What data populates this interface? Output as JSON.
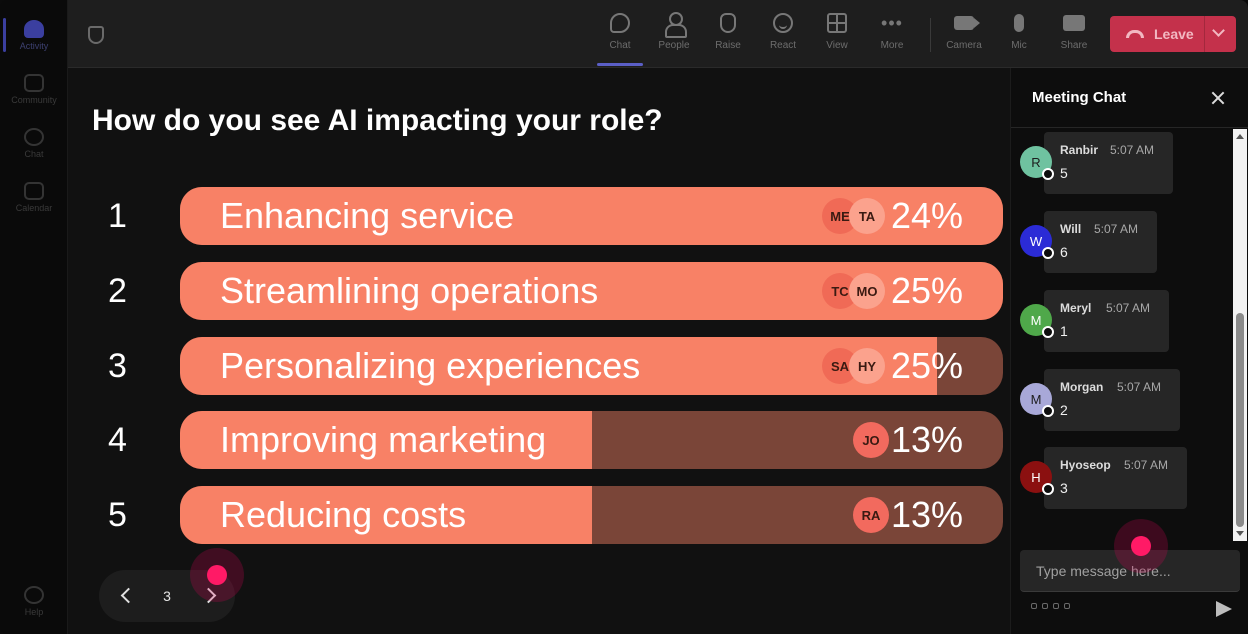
{
  "rail": {
    "items": [
      {
        "label": "Activity",
        "active": true
      },
      {
        "label": "Community",
        "active": false
      },
      {
        "label": "Chat",
        "active": false
      },
      {
        "label": "Calendar",
        "active": false
      },
      {
        "label": "Help",
        "active": false
      }
    ]
  },
  "toolbar": {
    "chat": "Chat",
    "people": "People",
    "raise": "Raise",
    "react": "React",
    "view": "View",
    "more": "More",
    "camera": "Camera",
    "mic": "Mic",
    "share": "Share",
    "leave": "Leave"
  },
  "poll": {
    "question": "How do you see AI impacting your role?",
    "options": [
      {
        "num": "1",
        "label": "Enhancing service",
        "pct": "24%",
        "fill": 1.0,
        "avatars": [
          "ME",
          "TA"
        ]
      },
      {
        "num": "2",
        "label": "Streamlining operations",
        "pct": "25%",
        "fill": 1.0,
        "avatars": [
          "TC",
          "MO"
        ]
      },
      {
        "num": "3",
        "label": "Personalizing experiences",
        "pct": "25%",
        "fill": 0.92,
        "avatars": [
          "SA",
          "HY"
        ]
      },
      {
        "num": "4",
        "label": "Improving marketing",
        "pct": "13%",
        "fill": 0.5,
        "avatars": [
          "JO"
        ]
      },
      {
        "num": "5",
        "label": "Reducing costs",
        "pct": "13%",
        "fill": 0.5,
        "avatars": [
          "RA"
        ]
      }
    ],
    "page": "3"
  },
  "chat": {
    "title": "Meeting Chat",
    "messages": [
      {
        "initial": "R",
        "name": "Ranbir",
        "time": "5:07 AM",
        "text": "5",
        "color": "#6fc2a0"
      },
      {
        "initial": "W",
        "name": "Will",
        "time": "5:07 AM",
        "text": "6",
        "color": "#2b2bd6"
      },
      {
        "initial": "M",
        "name": "Meryl",
        "time": "5:07 AM",
        "text": "1",
        "color": "#4fa84a"
      },
      {
        "initial": "M",
        "name": "Morgan",
        "time": "5:07 AM",
        "text": "2",
        "color": "#a8a8d8"
      },
      {
        "initial": "H",
        "name": "Hyoseop",
        "time": "5:07 AM",
        "text": "3",
        "color": "#8b1010"
      }
    ],
    "placeholder": "Type message here..."
  }
}
